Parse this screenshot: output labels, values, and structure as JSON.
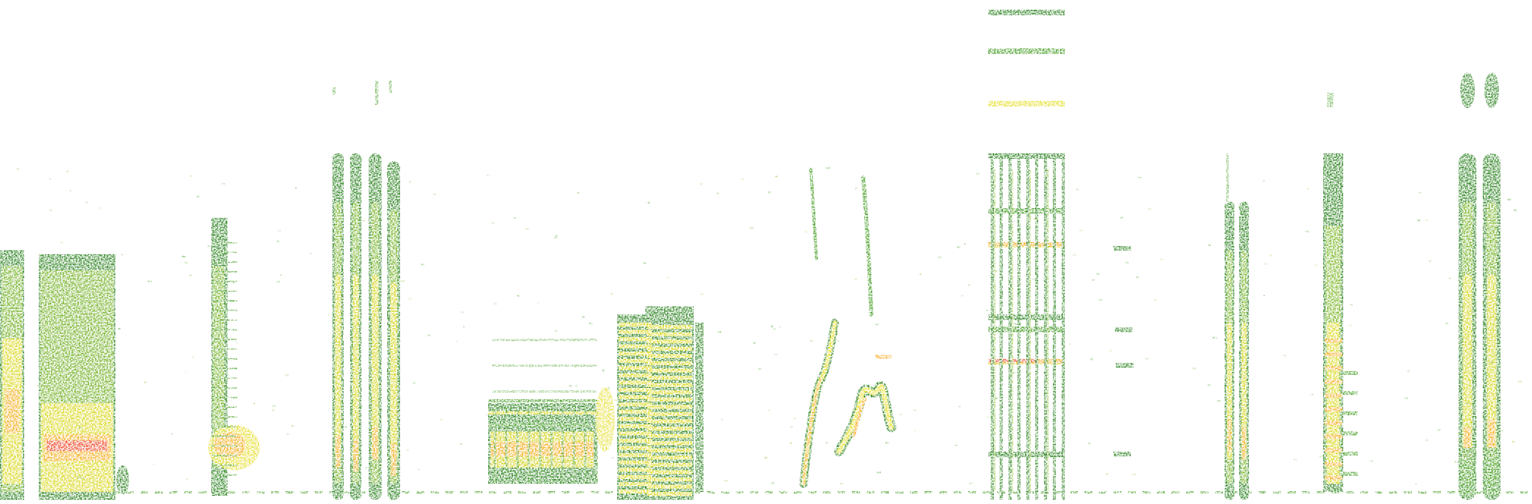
{
  "image": {
    "kind": "spectrogram",
    "background": "#ffffff",
    "palette": [
      "#1e7a12",
      "#3e9a1c",
      "#8cc22a",
      "#e4dc1e",
      "#f6a81a",
      "#ee3e22"
    ]
  }
}
